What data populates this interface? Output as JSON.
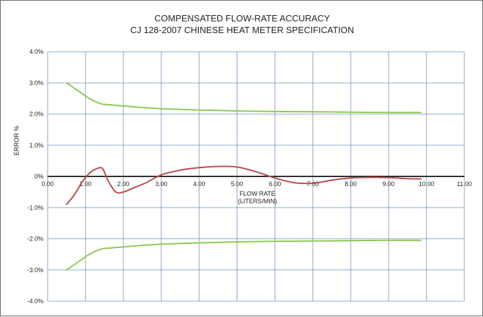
{
  "chart_data": {
    "type": "line",
    "title": "COMPENSATED FLOW-RATE ACCURACY",
    "subtitle": "CJ 128-2007 CHINESE HEAT METER SPECIFICATION",
    "xlabel": "FLOW RATE",
    "xlabel_unit": "(LITERS/MIN)",
    "ylabel": "ERROR %",
    "xlim": [
      0,
      11
    ],
    "ylim": [
      -4,
      4
    ],
    "x_ticks": [
      "0.00",
      "1.00",
      "2.00",
      "3.00",
      "4.00",
      "5.00",
      "6.00",
      "7.00",
      "8.00",
      "9.00",
      "10.00",
      "11.00"
    ],
    "y_ticks": [
      "4.0%",
      "3.0%",
      "2.0%",
      "1.0%",
      "0%",
      "-1.0%",
      "-2.0%",
      "-3.0%",
      "-4.0%"
    ],
    "grid": true,
    "colors": {
      "limit": "#8cc850",
      "error": "#b84a4a",
      "grid": "#6f8fc0",
      "zero": "#111111"
    },
    "series": [
      {
        "role": "upper-limit",
        "points": [
          [
            0.5,
            3.0
          ],
          [
            0.8,
            2.75
          ],
          [
            1.1,
            2.5
          ],
          [
            1.4,
            2.33
          ],
          [
            1.6,
            2.3
          ],
          [
            2.0,
            2.26
          ],
          [
            2.5,
            2.21
          ],
          [
            3.0,
            2.17
          ],
          [
            4.0,
            2.13
          ],
          [
            5.0,
            2.1
          ],
          [
            6.0,
            2.08
          ],
          [
            7.0,
            2.07
          ],
          [
            8.0,
            2.06
          ],
          [
            9.0,
            2.05
          ],
          [
            9.85,
            2.05
          ]
        ]
      },
      {
        "role": "lower-limit",
        "points": [
          [
            0.5,
            -3.0
          ],
          [
            0.8,
            -2.75
          ],
          [
            1.1,
            -2.5
          ],
          [
            1.4,
            -2.33
          ],
          [
            1.6,
            -2.3
          ],
          [
            2.0,
            -2.26
          ],
          [
            2.5,
            -2.21
          ],
          [
            3.0,
            -2.17
          ],
          [
            4.0,
            -2.13
          ],
          [
            5.0,
            -2.1
          ],
          [
            6.0,
            -2.08
          ],
          [
            7.0,
            -2.07
          ],
          [
            8.0,
            -2.06
          ],
          [
            9.0,
            -2.05
          ],
          [
            9.85,
            -2.05
          ]
        ]
      },
      {
        "role": "compensated-error",
        "points": [
          [
            0.5,
            -0.9
          ],
          [
            0.7,
            -0.6
          ],
          [
            0.9,
            -0.2
          ],
          [
            1.1,
            0.1
          ],
          [
            1.3,
            0.25
          ],
          [
            1.45,
            0.25
          ],
          [
            1.6,
            -0.15
          ],
          [
            1.8,
            -0.5
          ],
          [
            2.0,
            -0.5
          ],
          [
            2.3,
            -0.35
          ],
          [
            2.6,
            -0.2
          ],
          [
            3.0,
            0.05
          ],
          [
            3.5,
            0.2
          ],
          [
            4.0,
            0.28
          ],
          [
            4.5,
            0.32
          ],
          [
            5.0,
            0.3
          ],
          [
            5.5,
            0.15
          ],
          [
            6.0,
            -0.05
          ],
          [
            6.5,
            -0.2
          ],
          [
            7.0,
            -0.22
          ],
          [
            7.5,
            -0.12
          ],
          [
            8.0,
            -0.05
          ],
          [
            8.5,
            -0.03
          ],
          [
            9.0,
            -0.04
          ],
          [
            9.5,
            -0.07
          ],
          [
            9.85,
            -0.08
          ]
        ]
      }
    ]
  }
}
